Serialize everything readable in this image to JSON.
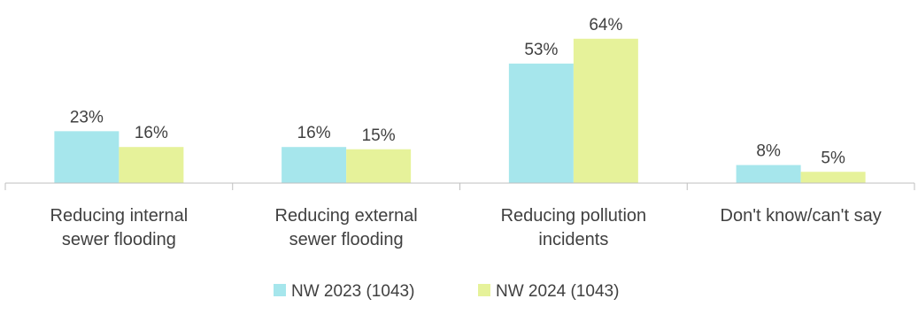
{
  "chart_data": {
    "type": "bar",
    "categories": [
      [
        "Reducing internal",
        "sewer flooding"
      ],
      [
        "Reducing external",
        "sewer flooding"
      ],
      [
        "Reducing pollution",
        "incidents"
      ],
      [
        "Don't know/can't say"
      ]
    ],
    "series": [
      {
        "name": "NW 2023 (1043)",
        "color": "#A6E6EC",
        "values": [
          23,
          16,
          53,
          8
        ],
        "labels": [
          "23%",
          "16%",
          "53%",
          "8%"
        ]
      },
      {
        "name": "NW 2024 (1043)",
        "color": "#E6F29A",
        "values": [
          16,
          15,
          64,
          5
        ],
        "labels": [
          "16%",
          "15%",
          "64%",
          "5%"
        ]
      }
    ],
    "unit": "%",
    "ylim": [
      0,
      64
    ],
    "grid": false,
    "legend_position": "bottom"
  }
}
